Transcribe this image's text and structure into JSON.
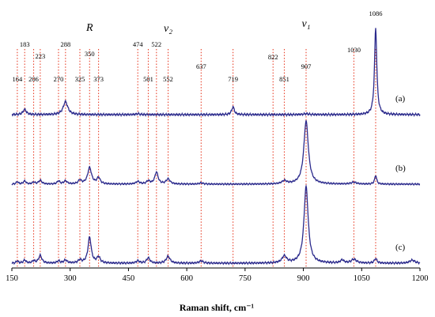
{
  "chart_data": {
    "type": "line",
    "xlabel": "Raman shift, cm⁻¹",
    "xlim": [
      150,
      1200
    ],
    "x_ticks": [
      150,
      300,
      450,
      600,
      750,
      900,
      1050,
      1200
    ],
    "grid": false,
    "band_labels": [
      {
        "text": "R",
        "x": 350
      },
      {
        "text": "ν₂",
        "x": 552
      },
      {
        "text": "ν₁",
        "x": 907
      }
    ],
    "reference_lines": [
      164,
      183,
      206,
      223,
      270,
      288,
      325,
      350,
      373,
      474,
      501,
      522,
      552,
      637,
      719,
      822,
      851,
      907,
      1030,
      1086
    ],
    "peak_labels": [
      {
        "text": "164",
        "x": 164
      },
      {
        "text": "183",
        "x": 183
      },
      {
        "text": "206",
        "x": 206
      },
      {
        "text": "223",
        "x": 223
      },
      {
        "text": "270",
        "x": 270
      },
      {
        "text": "288",
        "x": 288
      },
      {
        "text": "325",
        "x": 325
      },
      {
        "text": "350",
        "x": 350
      },
      {
        "text": "373",
        "x": 373
      },
      {
        "text": "474",
        "x": 474
      },
      {
        "text": "501",
        "x": 501
      },
      {
        "text": "522",
        "x": 522
      },
      {
        "text": "552",
        "x": 552
      },
      {
        "text": "637",
        "x": 637
      },
      {
        "text": "719",
        "x": 719
      },
      {
        "text": "822",
        "x": 822
      },
      {
        "text": "851",
        "x": 851
      },
      {
        "text": "907",
        "x": 907
      },
      {
        "text": "1030",
        "x": 1030
      },
      {
        "text": "1086",
        "x": 1086
      }
    ],
    "series": [
      {
        "name": "(a)",
        "color": "#2b2a8c",
        "peaks": [
          {
            "x": 183,
            "h": 0.06,
            "w": 5
          },
          {
            "x": 288,
            "h": 0.15,
            "w": 7
          },
          {
            "x": 474,
            "h": 0.01,
            "w": 6
          },
          {
            "x": 719,
            "h": 0.09,
            "w": 4
          },
          {
            "x": 907,
            "h": 0.01,
            "w": 8
          },
          {
            "x": 1086,
            "h": 1.0,
            "w": 3.5
          }
        ]
      },
      {
        "name": "(b)",
        "color": "#2b2a8c",
        "peaks": [
          {
            "x": 164,
            "h": 0.04,
            "w": 3
          },
          {
            "x": 183,
            "h": 0.05,
            "w": 4
          },
          {
            "x": 206,
            "h": 0.03,
            "w": 4
          },
          {
            "x": 223,
            "h": 0.06,
            "w": 5
          },
          {
            "x": 270,
            "h": 0.05,
            "w": 4
          },
          {
            "x": 288,
            "h": 0.05,
            "w": 5
          },
          {
            "x": 325,
            "h": 0.06,
            "w": 5
          },
          {
            "x": 350,
            "h": 0.26,
            "w": 6
          },
          {
            "x": 373,
            "h": 0.1,
            "w": 5
          },
          {
            "x": 474,
            "h": 0.04,
            "w": 6
          },
          {
            "x": 501,
            "h": 0.05,
            "w": 5
          },
          {
            "x": 522,
            "h": 0.19,
            "w": 5
          },
          {
            "x": 552,
            "h": 0.08,
            "w": 6
          },
          {
            "x": 637,
            "h": 0.02,
            "w": 6
          },
          {
            "x": 851,
            "h": 0.05,
            "w": 7
          },
          {
            "x": 907,
            "h": 1.0,
            "w": 7
          },
          {
            "x": 1030,
            "h": 0.03,
            "w": 8
          },
          {
            "x": 1086,
            "h": 0.14,
            "w": 3
          }
        ]
      },
      {
        "name": "(c)",
        "color": "#2b2a8c",
        "peaks": [
          {
            "x": 164,
            "h": 0.03,
            "w": 3
          },
          {
            "x": 183,
            "h": 0.04,
            "w": 4
          },
          {
            "x": 206,
            "h": 0.03,
            "w": 4
          },
          {
            "x": 223,
            "h": 0.1,
            "w": 5
          },
          {
            "x": 270,
            "h": 0.03,
            "w": 4
          },
          {
            "x": 288,
            "h": 0.04,
            "w": 5
          },
          {
            "x": 325,
            "h": 0.04,
            "w": 5
          },
          {
            "x": 350,
            "h": 0.34,
            "w": 5
          },
          {
            "x": 373,
            "h": 0.08,
            "w": 5
          },
          {
            "x": 474,
            "h": 0.03,
            "w": 5
          },
          {
            "x": 501,
            "h": 0.07,
            "w": 5
          },
          {
            "x": 552,
            "h": 0.09,
            "w": 6
          },
          {
            "x": 637,
            "h": 0.03,
            "w": 6
          },
          {
            "x": 851,
            "h": 0.09,
            "w": 7
          },
          {
            "x": 907,
            "h": 1.0,
            "w": 6.5
          },
          {
            "x": 1000,
            "h": 0.04,
            "w": 5
          },
          {
            "x": 1030,
            "h": 0.05,
            "w": 8
          },
          {
            "x": 1086,
            "h": 0.06,
            "w": 4
          },
          {
            "x": 1180,
            "h": 0.04,
            "w": 8
          }
        ]
      }
    ]
  }
}
